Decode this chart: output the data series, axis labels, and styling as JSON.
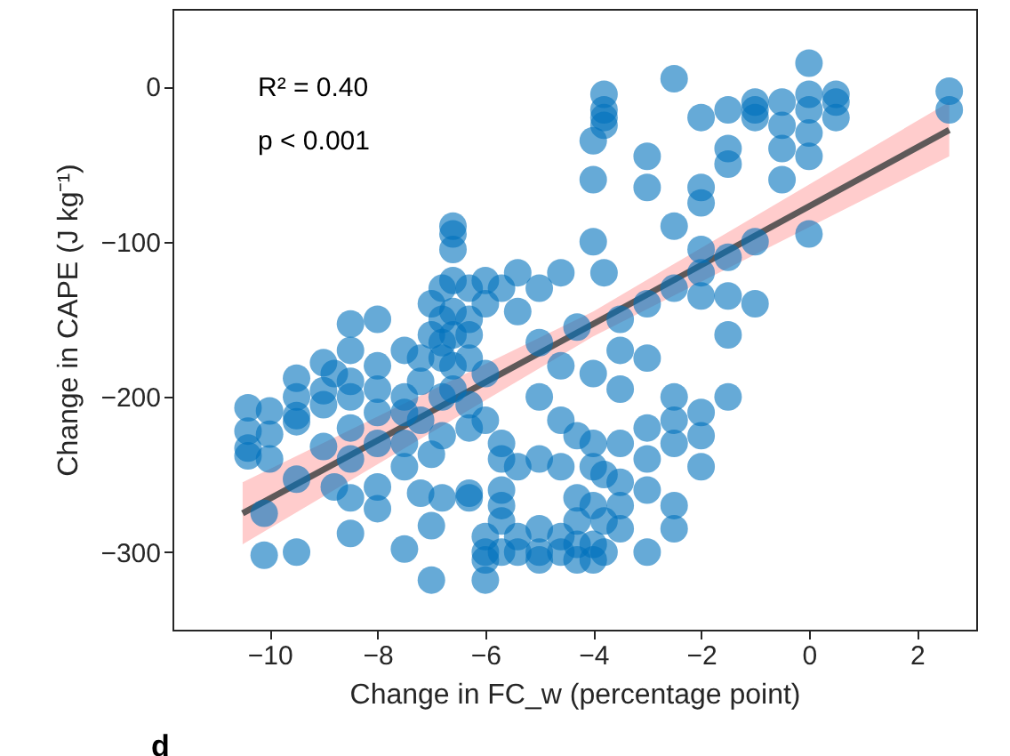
{
  "chart_data": {
    "type": "scatter",
    "xlabel": "Change in FC_w (percentage point)",
    "ylabel": "Change in CAPE (J kg⁻¹)",
    "xlim": [
      -11.8,
      3.1
    ],
    "ylim": [
      -350,
      50
    ],
    "xticks": [
      -10,
      -8,
      -6,
      -4,
      -2,
      0,
      2
    ],
    "yticks": [
      -300,
      -200,
      -100,
      0
    ],
    "grid": false,
    "annotations": [
      "R² = 0.40",
      "p < 0.001",
      "d"
    ],
    "series": [
      {
        "color": "#0072bd",
        "marker": "circle",
        "x": [
          -10.4,
          -10.4,
          -10.4,
          -10.4,
          -10,
          -10,
          -10,
          -10.1,
          -10.1,
          -9.5,
          -9.5,
          -9.5,
          -9.5,
          -9.5,
          -9.5,
          -9,
          -9,
          -9,
          -9,
          -8.8,
          -8.8,
          -8.5,
          -8.5,
          -8.5,
          -8.5,
          -8.5,
          -8.5,
          -8.5,
          -8.5,
          -8,
          -8,
          -8,
          -8,
          -8,
          -8,
          -8,
          -7.5,
          -7.5,
          -7.5,
          -7.5,
          -7.5,
          -7.5,
          -7.2,
          -7.2,
          -7.2,
          -7.2,
          -7,
          -7,
          -7,
          -7,
          -7,
          -6.8,
          -6.8,
          -6.8,
          -6.8,
          -6.8,
          -6.8,
          -6.8,
          -6.6,
          -6.6,
          -6.6,
          -6.6,
          -6.6,
          -6.6,
          -6.6,
          -6.6,
          -6.3,
          -6.3,
          -6.3,
          -6.3,
          -6.3,
          -6.3,
          -6.3,
          -6.3,
          -6,
          -6,
          -6,
          -6,
          -6,
          -6,
          -6,
          -6,
          -5.7,
          -5.7,
          -5.7,
          -5.7,
          -5.7,
          -5.7,
          -5.7,
          -5.4,
          -5.4,
          -5.4,
          -5.4,
          -5.4,
          -5,
          -5,
          -5,
          -5,
          -5,
          -5,
          -5,
          -4.6,
          -4.6,
          -4.6,
          -4.6,
          -4.6,
          -4.6,
          -4.3,
          -4.3,
          -4.3,
          -4.3,
          -4.3,
          -4.3,
          -4,
          -4,
          -4,
          -4,
          -4,
          -4,
          -4,
          -4,
          -4,
          -3.8,
          -3.8,
          -3.8,
          -3.8,
          -3.8,
          -3.8,
          -3.8,
          -3.8,
          -3.5,
          -3.5,
          -3.5,
          -3.5,
          -3.5,
          -3.5,
          -3.5,
          -3,
          -3,
          -3,
          -3,
          -3,
          -3,
          -3,
          -3,
          -2.5,
          -2.5,
          -2.5,
          -2.5,
          -2.5,
          -2.5,
          -2.5,
          -2.5,
          -2,
          -2,
          -2,
          -2,
          -2,
          -2,
          -2,
          -2,
          -2,
          -1.5,
          -1.5,
          -1.5,
          -1.5,
          -1.5,
          -1.5,
          -1.5,
          -1,
          -1,
          -1,
          -1,
          -1,
          -0.5,
          -0.5,
          -0.5,
          -0.5,
          0,
          0,
          0,
          0,
          0,
          0,
          0.5,
          0.5,
          0.5,
          2.6,
          2.6
        ],
        "values": [
          -207,
          -222,
          -238,
          -233,
          -209,
          -224,
          -240,
          -302,
          -275,
          -253,
          -300,
          -216,
          -188,
          -200,
          -212,
          -196,
          -205,
          -178,
          -232,
          -185,
          -258,
          -153,
          -170,
          -190,
          -200,
          -220,
          -240,
          -265,
          -288,
          -150,
          -180,
          -195,
          -210,
          -230,
          -258,
          -272,
          -170,
          -200,
          -210,
          -230,
          -245,
          -298,
          -175,
          -190,
          -215,
          -262,
          -160,
          -140,
          -318,
          -283,
          -237,
          -130,
          -150,
          -165,
          -175,
          -200,
          -225,
          -265,
          -90,
          -95,
          -105,
          -125,
          -145,
          -160,
          -180,
          -195,
          -130,
          -150,
          -160,
          -175,
          -205,
          -220,
          -262,
          -265,
          -125,
          -140,
          -185,
          -215,
          -290,
          -305,
          -318,
          -300,
          -130,
          -230,
          -240,
          -260,
          -270,
          -300,
          -280,
          -120,
          -145,
          -245,
          -290,
          -300,
          -130,
          -165,
          -200,
          -240,
          -300,
          -305,
          -285,
          -120,
          -180,
          -215,
          -245,
          -290,
          -300,
          -155,
          -225,
          -265,
          -280,
          -305,
          -295,
          -35,
          -60,
          -100,
          -185,
          -230,
          -245,
          -270,
          -295,
          -305,
          -5,
          -15,
          -20,
          -25,
          -120,
          -250,
          -280,
          -300,
          -150,
          -170,
          -195,
          -230,
          -255,
          -270,
          -285,
          -45,
          -65,
          -140,
          -175,
          -220,
          -240,
          -260,
          -300,
          5,
          -90,
          -130,
          -200,
          -215,
          -230,
          -270,
          -285,
          -20,
          -65,
          -75,
          -105,
          -120,
          -135,
          -210,
          -245,
          -225,
          -15,
          -40,
          -50,
          -110,
          -135,
          -160,
          -200,
          -10,
          -15,
          -20,
          -100,
          -140,
          -10,
          -25,
          -40,
          -60,
          15,
          -5,
          -15,
          -30,
          -45,
          -95,
          -5,
          -10,
          -20,
          -3,
          -15
        ]
      },
      {
        "type": "line",
        "color": "#4d4d4d",
        "x": [
          -10.5,
          -4,
          2.6
        ],
        "values": [
          -275,
          -153,
          -28
        ],
        "lower": [
          -295,
          -161,
          -45
        ],
        "upper": [
          -255,
          -145,
          -10
        ],
        "marker": "none"
      }
    ]
  }
}
